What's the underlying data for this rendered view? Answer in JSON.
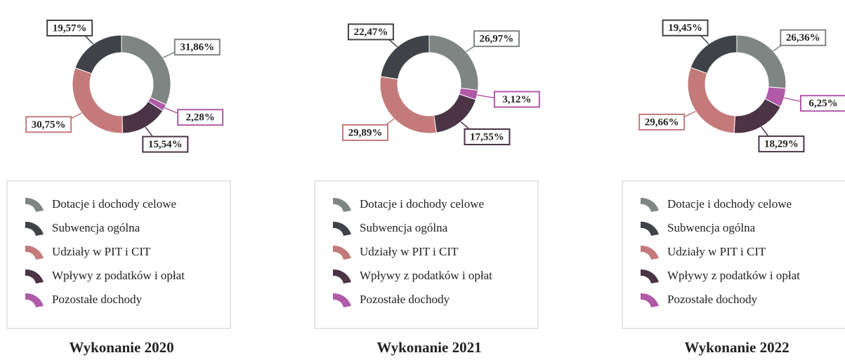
{
  "chart_data": [
    {
      "type": "pie",
      "title": "Wykonanie 2020",
      "categories": [
        "Dotacje i dochody celowe",
        "Subwencja ogólna",
        "Udziały w PIT i CIT",
        "Wpływy z podatków i opłat",
        "Pozostałe dochody"
      ],
      "values": [
        31.86,
        19.57,
        30.75,
        15.54,
        2.28
      ],
      "value_labels": [
        "31,86%",
        "19,57%",
        "30,75%",
        "15,54%",
        "2,28%"
      ],
      "colors": [
        "#7f8583",
        "#3f4347",
        "#c47a7b",
        "#4b3446",
        "#b05aa8"
      ]
    },
    {
      "type": "pie",
      "title": "Wykonanie 2021",
      "categories": [
        "Dotacje i dochody celowe",
        "Subwencja ogólna",
        "Udziały w PIT i CIT",
        "Wpływy z podatków i opłat",
        "Pozostałe dochody"
      ],
      "values": [
        26.97,
        22.47,
        29.89,
        17.55,
        3.12
      ],
      "value_labels": [
        "26,97%",
        "22,47%",
        "29,89%",
        "17,55%",
        "3,12%"
      ],
      "colors": [
        "#7f8583",
        "#3f4347",
        "#c47a7b",
        "#4b3446",
        "#b05aa8"
      ]
    },
    {
      "type": "pie",
      "title": "Wykonanie 2022",
      "categories": [
        "Dotacje i dochody celowe",
        "Subwencja ogólna",
        "Udziały w PIT i CIT",
        "Wpływy z podatków i opłat",
        "Pozostałe dochody"
      ],
      "values": [
        26.36,
        19.45,
        29.66,
        18.29,
        6.25
      ],
      "value_labels": [
        "26,36%",
        "19,45%",
        "29,66%",
        "18,29%",
        "6,25%"
      ],
      "colors": [
        "#7f8583",
        "#3f4347",
        "#c47a7b",
        "#4b3446",
        "#b05aa8"
      ]
    }
  ]
}
